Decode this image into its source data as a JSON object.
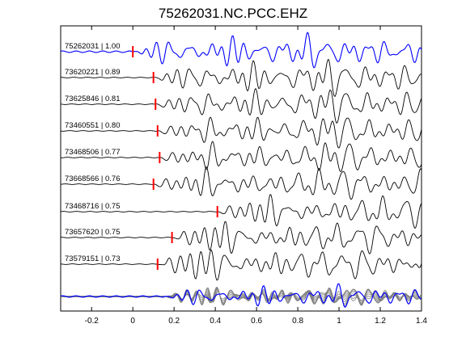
{
  "chart_data": {
    "type": "line",
    "title": "75262031.NC.PCC.EHZ",
    "xlabel": "",
    "ylabel": "",
    "xlim": [
      -0.35,
      1.4
    ],
    "x_ticks": [
      -0.2,
      0,
      0.2,
      0.4,
      0.6,
      0.8,
      1,
      1.2,
      1.4
    ],
    "x_tick_labels": [
      "-0.2",
      "0",
      "0.2",
      "0.4",
      "0.6",
      "0.8",
      "1",
      "1.2",
      "1.4"
    ],
    "grid": false,
    "colors": {
      "template": "#0000ff",
      "trace": "#000000",
      "pick": "#ff0000",
      "overlay": "#808080"
    },
    "series": [
      {
        "name": "75262031 | 1.00",
        "pick_time": 0.0,
        "template": true
      },
      {
        "name": "73620221 | 0.89",
        "pick_time": 0.1
      },
      {
        "name": "73625846 | 0.81",
        "pick_time": 0.11
      },
      {
        "name": "73460551 | 0.80",
        "pick_time": 0.12
      },
      {
        "name": "73468506 | 0.77",
        "pick_time": 0.13
      },
      {
        "name": "73668566 | 0.76",
        "pick_time": 0.1
      },
      {
        "name": "73468716 | 0.75",
        "pick_time": 0.41
      },
      {
        "name": "73657620 | 0.75",
        "pick_time": 0.19
      },
      {
        "name": "73579151 | 0.73",
        "pick_time": 0.12
      }
    ]
  }
}
